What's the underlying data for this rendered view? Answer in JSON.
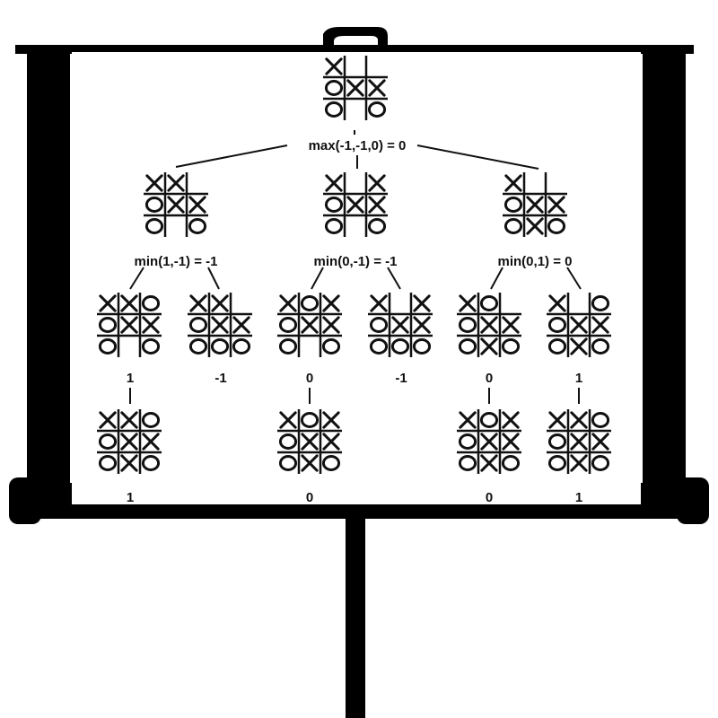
{
  "colors": {
    "frame": "#000000",
    "screen": "#ffffff",
    "ink": "#111111"
  },
  "tree": {
    "root": {
      "board": [
        "X",
        "",
        "",
        "O",
        "X",
        "X",
        "O",
        "",
        "O"
      ],
      "label": "max(-1,-1,0) = 0"
    },
    "level1": [
      {
        "board": [
          "X",
          "X",
          "",
          "O",
          "X",
          "X",
          "O",
          "",
          "O"
        ],
        "label": "min(1,-1) = -1"
      },
      {
        "board": [
          "X",
          "",
          "X",
          "O",
          "X",
          "X",
          "O",
          "",
          "O"
        ],
        "label": "min(0,-1) = -1"
      },
      {
        "board": [
          "X",
          "",
          "",
          "O",
          "X",
          "X",
          "O",
          "X",
          "O"
        ],
        "label": "min(0,1) = 0"
      }
    ],
    "level2": [
      {
        "board": [
          "X",
          "X",
          "O",
          "O",
          "X",
          "X",
          "O",
          "",
          "O"
        ],
        "value": "1"
      },
      {
        "board": [
          "X",
          "X",
          "",
          "O",
          "X",
          "X",
          "O",
          "O",
          "O"
        ],
        "value": "-1"
      },
      {
        "board": [
          "X",
          "O",
          "X",
          "O",
          "X",
          "X",
          "O",
          "",
          "O"
        ],
        "value": "0"
      },
      {
        "board": [
          "X",
          "",
          "X",
          "O",
          "X",
          "X",
          "O",
          "O",
          "O"
        ],
        "value": "-1"
      },
      {
        "board": [
          "X",
          "O",
          "",
          "O",
          "X",
          "X",
          "O",
          "X",
          "O"
        ],
        "value": "0"
      },
      {
        "board": [
          "X",
          "",
          "O",
          "O",
          "X",
          "X",
          "O",
          "X",
          "O"
        ],
        "value": "1"
      }
    ],
    "level3": [
      {
        "board": [
          "X",
          "X",
          "O",
          "O",
          "X",
          "X",
          "O",
          "X",
          "O"
        ],
        "value": "1"
      },
      {
        "board": [
          "X",
          "O",
          "X",
          "O",
          "X",
          "X",
          "O",
          "X",
          "O"
        ],
        "value": "0"
      },
      {
        "board": [
          "X",
          "O",
          "X",
          "O",
          "X",
          "X",
          "O",
          "X",
          "O"
        ],
        "value": "0"
      },
      {
        "board": [
          "X",
          "X",
          "O",
          "O",
          "X",
          "X",
          "O",
          "X",
          "O"
        ],
        "value": "1"
      }
    ]
  }
}
